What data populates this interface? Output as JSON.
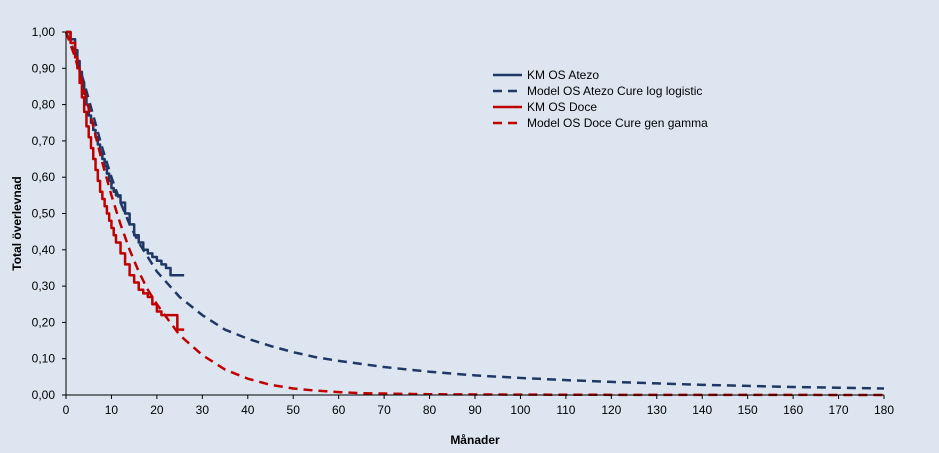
{
  "chart_data": {
    "type": "line",
    "title": "",
    "xlabel": "Månader",
    "ylabel": "Total överlevnad",
    "xlim": [
      0,
      180
    ],
    "ylim": [
      0,
      1
    ],
    "x_ticks": [
      0,
      10,
      20,
      30,
      40,
      50,
      60,
      70,
      80,
      90,
      100,
      110,
      120,
      130,
      140,
      150,
      160,
      170,
      180
    ],
    "y_ticks": [
      {
        "value": 0.0,
        "label": "0,00"
      },
      {
        "value": 0.1,
        "label": "0,10"
      },
      {
        "value": 0.2,
        "label": "0,20"
      },
      {
        "value": 0.3,
        "label": "0,30"
      },
      {
        "value": 0.4,
        "label": "0,40"
      },
      {
        "value": 0.5,
        "label": "0,50"
      },
      {
        "value": 0.6,
        "label": "0,60"
      },
      {
        "value": 0.7,
        "label": "0,70"
      },
      {
        "value": 0.8,
        "label": "0,80"
      },
      {
        "value": 0.9,
        "label": "0,90"
      },
      {
        "value": 1.0,
        "label": "1,00"
      }
    ],
    "grid": false,
    "legend_position": "top-right",
    "series": [
      {
        "name": "KM OS Atezo",
        "color": "#1f3864",
        "style": "step",
        "x": [
          0,
          1,
          2,
          2.5,
          3,
          3.5,
          4,
          4.5,
          5,
          5.5,
          6,
          6.5,
          7,
          7.5,
          8,
          8.5,
          9,
          9.5,
          10,
          10.5,
          11,
          12,
          13,
          14,
          15,
          16,
          17,
          18,
          19,
          20,
          21,
          22,
          23,
          24,
          25,
          26
        ],
        "y": [
          1.0,
          0.98,
          0.95,
          0.92,
          0.89,
          0.86,
          0.83,
          0.8,
          0.77,
          0.75,
          0.73,
          0.71,
          0.69,
          0.67,
          0.65,
          0.63,
          0.61,
          0.59,
          0.57,
          0.56,
          0.55,
          0.53,
          0.5,
          0.47,
          0.44,
          0.42,
          0.4,
          0.39,
          0.38,
          0.37,
          0.36,
          0.35,
          0.33,
          0.33,
          0.33,
          0.33
        ]
      },
      {
        "name": "Model OS Atezo Cure log logistic",
        "color": "#1f3864",
        "style": "dashed",
        "x": [
          0,
          2,
          4,
          6,
          8,
          10,
          12,
          14,
          16,
          18,
          20,
          25,
          30,
          35,
          40,
          45,
          50,
          55,
          60,
          70,
          80,
          90,
          100,
          110,
          120,
          130,
          140,
          150,
          160,
          170,
          180
        ],
        "y": [
          1.0,
          0.94,
          0.86,
          0.77,
          0.68,
          0.6,
          0.53,
          0.47,
          0.42,
          0.38,
          0.34,
          0.27,
          0.22,
          0.18,
          0.155,
          0.135,
          0.118,
          0.104,
          0.094,
          0.077,
          0.064,
          0.054,
          0.047,
          0.041,
          0.036,
          0.032,
          0.028,
          0.025,
          0.022,
          0.02,
          0.018
        ]
      },
      {
        "name": "KM OS Doce",
        "color": "#c00000",
        "style": "step",
        "x": [
          0,
          1,
          2,
          2.5,
          3,
          3.5,
          4,
          4.5,
          5,
          5.5,
          6,
          6.5,
          7,
          7.5,
          8,
          8.5,
          9,
          9.5,
          10,
          10.5,
          11,
          12,
          13,
          14,
          15,
          16,
          17,
          18,
          19,
          20,
          21,
          22,
          23,
          24,
          24.5,
          25,
          26
        ],
        "y": [
          1.0,
          0.97,
          0.93,
          0.9,
          0.86,
          0.82,
          0.78,
          0.74,
          0.71,
          0.68,
          0.65,
          0.62,
          0.59,
          0.56,
          0.54,
          0.52,
          0.5,
          0.48,
          0.46,
          0.44,
          0.42,
          0.39,
          0.36,
          0.33,
          0.31,
          0.29,
          0.28,
          0.27,
          0.25,
          0.23,
          0.22,
          0.22,
          0.22,
          0.22,
          0.18,
          0.18,
          0.18
        ]
      },
      {
        "name": "Model OS Doce Cure gen gamma",
        "color": "#c00000",
        "style": "dashed",
        "x": [
          0,
          2,
          4,
          6,
          8,
          10,
          12,
          14,
          16,
          18,
          20,
          25,
          30,
          35,
          40,
          45,
          50,
          55,
          60,
          65,
          70,
          80,
          90,
          100,
          120,
          140,
          160,
          180
        ],
        "y": [
          1.0,
          0.93,
          0.84,
          0.74,
          0.64,
          0.55,
          0.47,
          0.4,
          0.34,
          0.29,
          0.25,
          0.165,
          0.11,
          0.07,
          0.045,
          0.028,
          0.018,
          0.012,
          0.008,
          0.005,
          0.004,
          0.002,
          0.0015,
          0.001,
          0.0005,
          0.0003,
          0.0002,
          0.0001
        ]
      }
    ]
  }
}
